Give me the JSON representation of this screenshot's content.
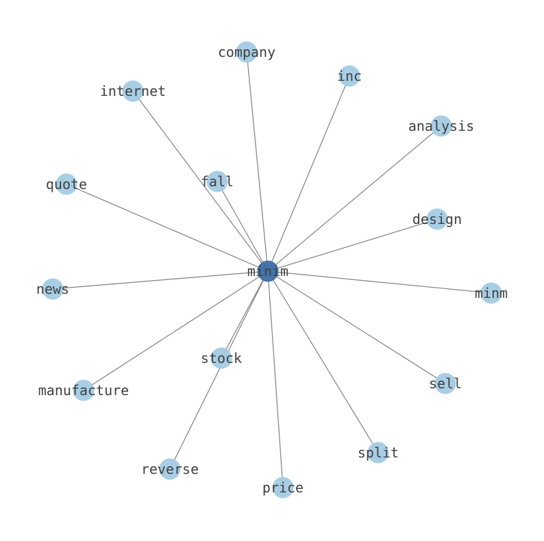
{
  "graph": {
    "center": {
      "id": "minim",
      "label": "minim"
    },
    "nodes": [
      {
        "id": "company",
        "label": "company"
      },
      {
        "id": "inc",
        "label": "inc"
      },
      {
        "id": "internet",
        "label": "internet"
      },
      {
        "id": "analysis",
        "label": "analysis"
      },
      {
        "id": "fall",
        "label": "fall"
      },
      {
        "id": "quote",
        "label": "quote"
      },
      {
        "id": "design",
        "label": "design"
      },
      {
        "id": "news",
        "label": "news"
      },
      {
        "id": "minm",
        "label": "minm"
      },
      {
        "id": "stock",
        "label": "stock"
      },
      {
        "id": "manufacture",
        "label": "manufacture"
      },
      {
        "id": "sell",
        "label": "sell"
      },
      {
        "id": "split",
        "label": "split"
      },
      {
        "id": "reverse",
        "label": "reverse"
      },
      {
        "id": "price",
        "label": "price"
      }
    ],
    "edges": "center-to-each-node",
    "colors": {
      "center_node": "#3c6fa6",
      "leaf_node": "#a3cbe4",
      "edge": "#808080",
      "label": "#404040"
    }
  }
}
